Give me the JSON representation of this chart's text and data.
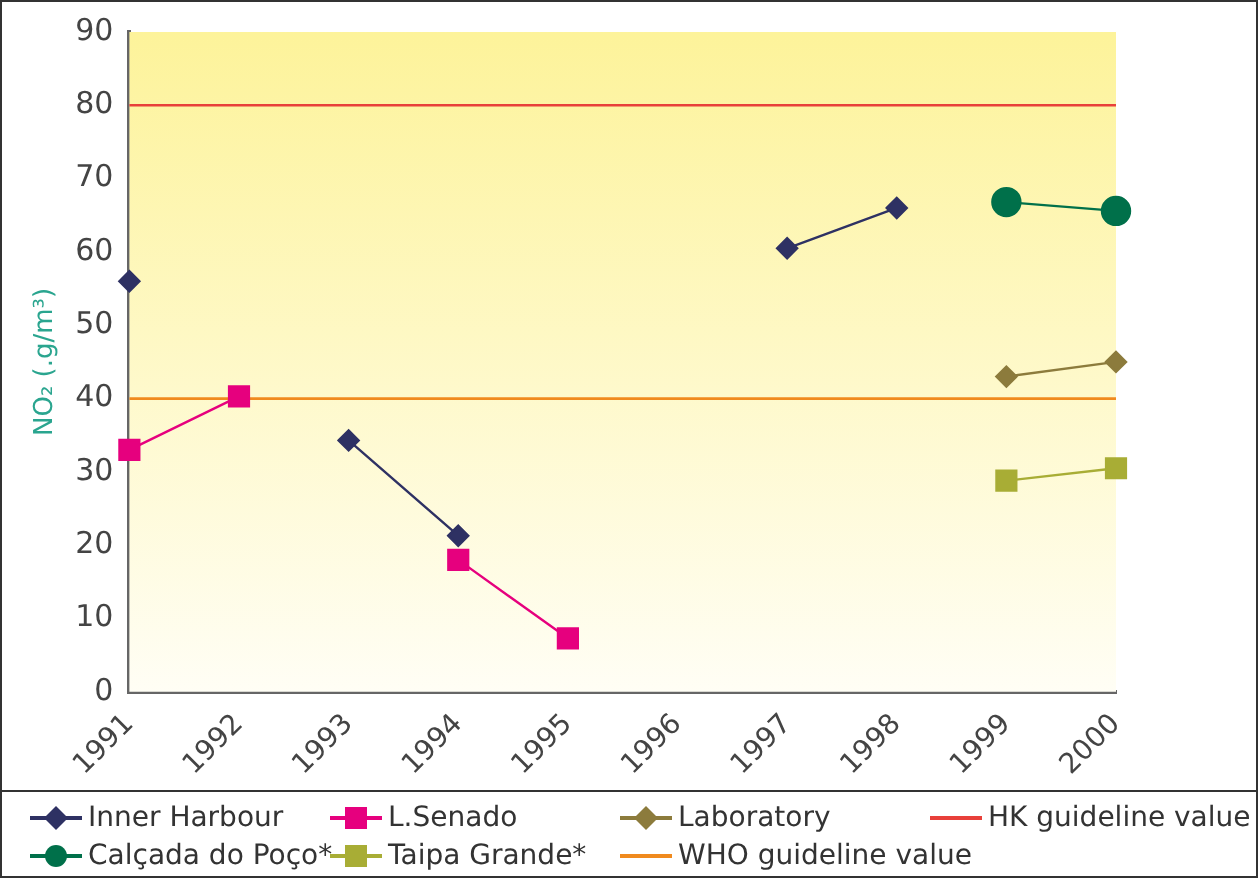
{
  "chart_data": {
    "type": "line",
    "ylabel": "NO₂ (.g/m³)",
    "categories": [
      "1991",
      "1992",
      "1993",
      "1994",
      "1995",
      "1996",
      "1997",
      "1998",
      "1999",
      "2000"
    ],
    "ylim": [
      0,
      90
    ],
    "yticks": [
      0,
      10,
      20,
      30,
      40,
      50,
      60,
      70,
      80,
      90
    ],
    "grid": false,
    "legend": "bottom",
    "series": [
      {
        "name": "Inner Harbour",
        "color": "#2e3163",
        "marker": "diamond",
        "values": [
          56,
          null,
          34.3,
          21.3,
          null,
          null,
          60.5,
          66,
          null,
          null
        ]
      },
      {
        "name": "L.Senado",
        "color": "#e6007e",
        "marker": "square",
        "values": [
          33,
          40.3,
          null,
          18,
          7.3,
          null,
          null,
          null,
          null,
          null
        ]
      },
      {
        "name": "Laboratory",
        "color": "#8c7b3c",
        "marker": "diamond",
        "values": [
          null,
          null,
          null,
          null,
          null,
          null,
          null,
          null,
          43,
          45
        ]
      },
      {
        "name": "Calçada do Poço*",
        "color": "#00704a",
        "marker": "circle",
        "values": [
          null,
          null,
          null,
          null,
          null,
          null,
          null,
          null,
          66.8,
          65.6
        ]
      },
      {
        "name": "Taipa Grande*",
        "color": "#a8ad35",
        "marker": "square",
        "values": [
          null,
          null,
          null,
          null,
          null,
          null,
          null,
          null,
          28.8,
          30.5
        ]
      }
    ],
    "ref_lines": [
      {
        "axis": "y",
        "value": 80,
        "label": "HK guideline value",
        "color": "#e8403a"
      },
      {
        "axis": "y",
        "value": 40,
        "label": "WHO guideline value",
        "color": "#f08a1e"
      }
    ]
  }
}
